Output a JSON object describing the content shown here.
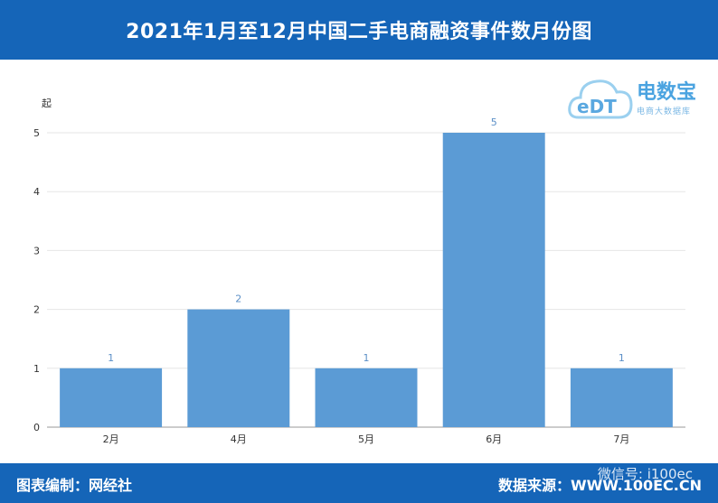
{
  "header": {
    "title": "2021年1月至12月中国二手电商融资事件数月份图"
  },
  "logo": {
    "brand": "电数宝",
    "sub": "电商大数据库",
    "mark": "eDT"
  },
  "footer": {
    "left": "图表编制：网经社",
    "right": "数据来源：WWW.100EC.CN",
    "watermark": "微信号: i100ec"
  },
  "colors": {
    "bar": "#5b9bd5",
    "header": "#1565b8",
    "label": "#5b8fc7"
  },
  "chart_data": {
    "type": "bar",
    "title": "2021年1月至12月中国二手电商融资事件数月份图",
    "ylabel": "起",
    "xlabel": "",
    "categories": [
      "2月",
      "4月",
      "5月",
      "6月",
      "7月"
    ],
    "values": [
      1,
      2,
      1,
      5,
      1
    ],
    "ylim": [
      0,
      5
    ],
    "yticks": [
      0,
      1,
      2,
      3,
      4,
      5
    ],
    "grid": true,
    "legend": "none"
  }
}
